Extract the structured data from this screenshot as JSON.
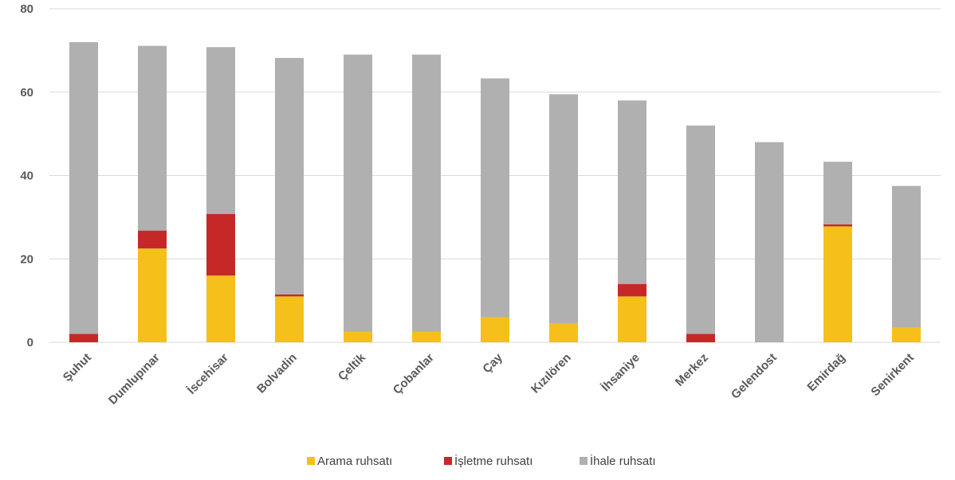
{
  "chart_data": {
    "type": "bar",
    "stacked": true,
    "categories": [
      "Şuhut",
      "Dumlupınar",
      "İscehisar",
      "Bolvadin",
      "Çeltik",
      "Çobanlar",
      "Çay",
      "Kızılören",
      "İhsaniye",
      "Merkez",
      "Gelendost",
      "Emirdağ",
      "Senirkent"
    ],
    "series": [
      {
        "name": "Arama ruhsatı",
        "color": "#f5c01a",
        "values": [
          0,
          22.5,
          16,
          11,
          2.5,
          2.5,
          6,
          4.5,
          11,
          0,
          0,
          27.8,
          3.5
        ]
      },
      {
        "name": "İşletme ruhsatı",
        "color": "#c62828",
        "values": [
          2,
          4.3,
          14.8,
          0.5,
          0,
          0,
          0,
          0,
          3,
          2,
          0,
          0.5,
          0
        ]
      },
      {
        "name": "İhale ruhsatı",
        "color": "#b0b0b0",
        "values": [
          70,
          44.3,
          40,
          56.7,
          66.5,
          66.5,
          57.3,
          55,
          44,
          50,
          48,
          15,
          34
        ]
      }
    ],
    "ylim": [
      0,
      80
    ],
    "yticks": [
      0,
      20,
      40,
      60,
      80
    ],
    "grid": true,
    "legend": "bottom-center",
    "title": "",
    "xlabel": "",
    "ylabel": ""
  }
}
